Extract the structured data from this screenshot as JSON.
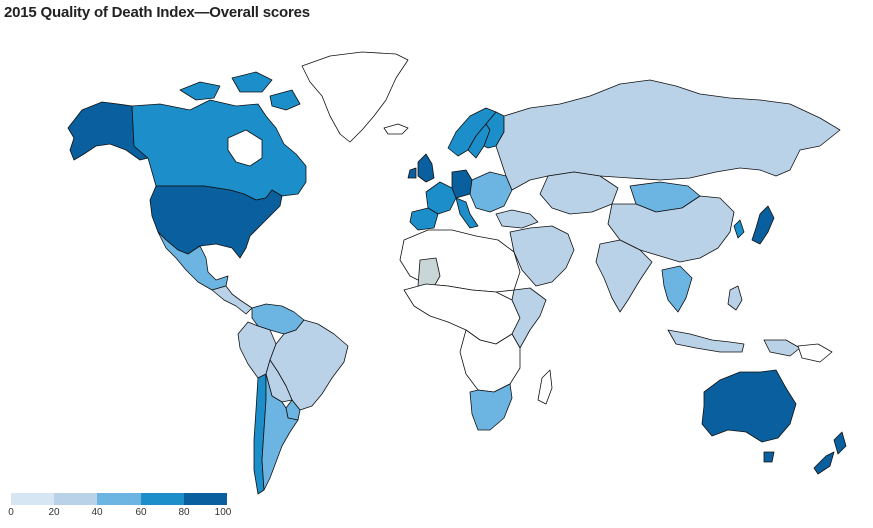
{
  "title": "2015 Quality of Death Index—Overall scores",
  "legend": {
    "ticks": [
      "0",
      "20",
      "40",
      "60",
      "80",
      "100"
    ],
    "colors": [
      "#d6e6f2",
      "#b9d2e8",
      "#6cb5e2",
      "#1c8fca",
      "#0a5f9e"
    ]
  },
  "colors": {
    "no_data": "#ffffff",
    "outline": "#111111",
    "other": "#c9d6d8"
  }
}
